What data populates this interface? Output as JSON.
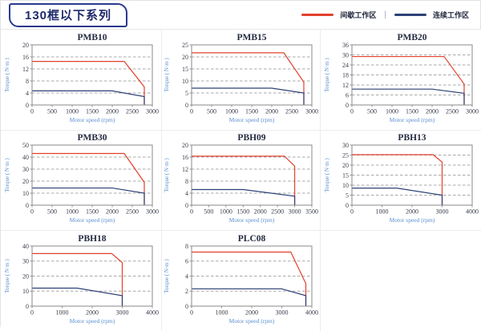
{
  "page": {
    "title_badge": "130框以下系列",
    "legend": {
      "intermittent_label": "间歇工作区",
      "separator": "|",
      "continuous_label": "连续工作区"
    }
  },
  "colors": {
    "intermittent": "#e2402c",
    "continuous": "#2c4076",
    "badge_border": "#2b3990",
    "badge_text": "#1f2a6b",
    "axis_label_blue": "#5b8fd0",
    "tick_text": "#3a3f4d",
    "title_text": "#242b40",
    "grid_dash": "#a8a8a8",
    "frame": "#8a8a8a"
  },
  "chart_data": [
    {
      "type": "line",
      "title": "PMB10",
      "xlabel": "Motor speed (rpm)",
      "ylabel": "Torque ( N·m )",
      "xlim": [
        0,
        3000
      ],
      "ylim": [
        0,
        20
      ],
      "xticks": [
        0,
        500,
        1000,
        1500,
        2000,
        2500,
        3000
      ],
      "yticks": [
        0,
        4,
        8,
        12,
        16,
        20
      ],
      "series": [
        {
          "name": "间歇工作区",
          "color": "#e2402c",
          "points": [
            [
              0,
              14.5
            ],
            [
              2300,
              14.5
            ],
            [
              2800,
              6
            ],
            [
              2800,
              0
            ]
          ]
        },
        {
          "name": "连续工作区",
          "color": "#2c4076",
          "points": [
            [
              0,
              4.7
            ],
            [
              2000,
              4.7
            ],
            [
              2800,
              2.8
            ],
            [
              2800,
              0
            ]
          ]
        }
      ]
    },
    {
      "type": "line",
      "title": "PMB15",
      "xlabel": "Motor speed (rpm)",
      "ylabel": "Torque ( N·m )",
      "xlim": [
        0,
        3000
      ],
      "ylim": [
        0,
        25
      ],
      "xticks": [
        0,
        500,
        1000,
        1500,
        2000,
        2500,
        3000
      ],
      "yticks": [
        0,
        5,
        10,
        15,
        20,
        25
      ],
      "series": [
        {
          "name": "间歇工作区",
          "color": "#e2402c",
          "points": [
            [
              0,
              21.7
            ],
            [
              2300,
              21.7
            ],
            [
              2800,
              9.5
            ],
            [
              2800,
              0
            ]
          ]
        },
        {
          "name": "连续工作区",
          "color": "#2c4076",
          "points": [
            [
              0,
              7
            ],
            [
              2000,
              7
            ],
            [
              2800,
              5
            ],
            [
              2800,
              0
            ]
          ]
        }
      ]
    },
    {
      "type": "line",
      "title": "PMB20",
      "xlabel": "Motor speed (rpm)",
      "ylabel": "Torque ( N·m )",
      "xlim": [
        0,
        3000
      ],
      "ylim": [
        0,
        36
      ],
      "xticks": [
        0,
        500,
        1000,
        1500,
        2000,
        2500,
        3000
      ],
      "yticks": [
        0,
        6,
        12,
        18,
        24,
        30,
        36
      ],
      "series": [
        {
          "name": "间歇工作区",
          "color": "#e2402c",
          "points": [
            [
              0,
              29
            ],
            [
              2300,
              29
            ],
            [
              2800,
              12.5
            ],
            [
              2800,
              0
            ]
          ]
        },
        {
          "name": "连续工作区",
          "color": "#2c4076",
          "points": [
            [
              0,
              9.5
            ],
            [
              2000,
              9.5
            ],
            [
              2800,
              7
            ],
            [
              2800,
              0
            ]
          ]
        }
      ]
    },
    {
      "type": "line",
      "title": "PMB30",
      "xlabel": "Motor speed (rpm)",
      "ylabel": "Torque ( N·m )",
      "xlim": [
        0,
        3000
      ],
      "ylim": [
        0,
        50
      ],
      "xticks": [
        0,
        500,
        1000,
        1500,
        2000,
        2500,
        3000
      ],
      "yticks": [
        0,
        10,
        20,
        30,
        40,
        50
      ],
      "series": [
        {
          "name": "间歇工作区",
          "color": "#e2402c",
          "points": [
            [
              0,
              43
            ],
            [
              2300,
              43
            ],
            [
              2800,
              19
            ],
            [
              2800,
              0
            ]
          ]
        },
        {
          "name": "连续工作区",
          "color": "#2c4076",
          "points": [
            [
              0,
              14.3
            ],
            [
              2000,
              14.3
            ],
            [
              2800,
              10
            ],
            [
              2800,
              0
            ]
          ]
        }
      ]
    },
    {
      "type": "line",
      "title": "PBH09",
      "xlabel": "Motor speed (rpm)",
      "ylabel": "Torque ( N·m )",
      "xlim": [
        0,
        3500
      ],
      "ylim": [
        0,
        20
      ],
      "xticks": [
        0,
        500,
        1000,
        1500,
        2000,
        2500,
        3000,
        3500
      ],
      "yticks": [
        0,
        4,
        8,
        12,
        16,
        20
      ],
      "series": [
        {
          "name": "间歇工作区",
          "color": "#e2402c",
          "points": [
            [
              0,
              16.3
            ],
            [
              2700,
              16.3
            ],
            [
              3000,
              13
            ],
            [
              3000,
              0
            ]
          ]
        },
        {
          "name": "连续工作区",
          "color": "#2c4076",
          "points": [
            [
              0,
              5.2
            ],
            [
              1500,
              5.2
            ],
            [
              3000,
              3
            ],
            [
              3000,
              0
            ]
          ]
        }
      ]
    },
    {
      "type": "line",
      "title": "PBH13",
      "xlabel": "Motor speed (rpm)",
      "ylabel": "Torque ( N·m )",
      "xlim": [
        0,
        4000
      ],
      "ylim": [
        0,
        30
      ],
      "xticks": [
        0,
        1000,
        2000,
        3000,
        4000
      ],
      "yticks": [
        0,
        5,
        10,
        15,
        20,
        25,
        30
      ],
      "series": [
        {
          "name": "间歇工作区",
          "color": "#e2402c",
          "points": [
            [
              0,
              25.2
            ],
            [
              2700,
              25.2
            ],
            [
              3000,
              21.5
            ],
            [
              3000,
              0
            ]
          ]
        },
        {
          "name": "连续工作区",
          "color": "#2c4076",
          "points": [
            [
              0,
              8.5
            ],
            [
              1500,
              8.5
            ],
            [
              3000,
              5
            ],
            [
              3000,
              0
            ]
          ]
        }
      ]
    },
    {
      "type": "line",
      "title": "PBH18",
      "xlabel": "Motor speed (rpm)",
      "ylabel": "Torque ( N·m )",
      "xlim": [
        0,
        4000
      ],
      "ylim": [
        0,
        40
      ],
      "xticks": [
        0,
        1000,
        2000,
        3000,
        4000
      ],
      "yticks": [
        0,
        10,
        20,
        30,
        40
      ],
      "series": [
        {
          "name": "间歇工作区",
          "color": "#e2402c",
          "points": [
            [
              0,
              35
            ],
            [
              2650,
              35
            ],
            [
              3000,
              29
            ],
            [
              3000,
              0
            ]
          ]
        },
        {
          "name": "连续工作区",
          "color": "#2c4076",
          "points": [
            [
              0,
              12
            ],
            [
              1500,
              12
            ],
            [
              3000,
              7
            ],
            [
              3000,
              0
            ]
          ]
        }
      ]
    },
    {
      "type": "line",
      "title": "PLC08",
      "xlabel": "Motor speed (rpm)",
      "ylabel": "Torque ( N·m )",
      "xlim": [
        0,
        4000
      ],
      "ylim": [
        0,
        8
      ],
      "xticks": [
        0,
        1000,
        2000,
        3000,
        4000
      ],
      "yticks": [
        0,
        2,
        4,
        6,
        8
      ],
      "series": [
        {
          "name": "间歇工作区",
          "color": "#e2402c",
          "points": [
            [
              0,
              7.2
            ],
            [
              3300,
              7.2
            ],
            [
              3800,
              3
            ],
            [
              3800,
              0
            ]
          ]
        },
        {
          "name": "连续工作区",
          "color": "#2c4076",
          "points": [
            [
              0,
              2.3
            ],
            [
              3000,
              2.3
            ],
            [
              3800,
              1.4
            ],
            [
              3800,
              0
            ]
          ]
        }
      ]
    }
  ]
}
